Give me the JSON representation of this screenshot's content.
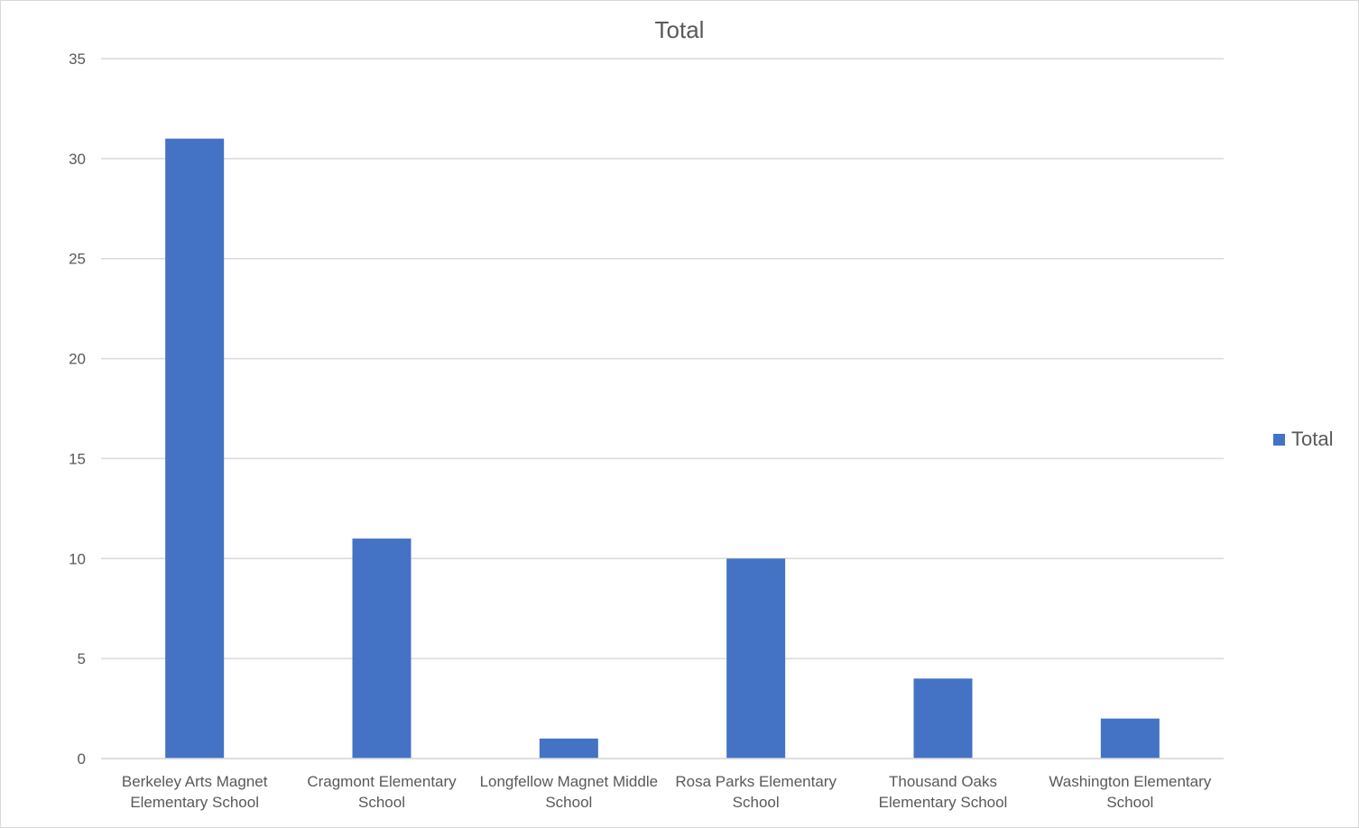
{
  "chart_data": {
    "type": "bar",
    "title": "Total",
    "categories": [
      [
        "Berkeley Arts Magnet",
        "Elementary School"
      ],
      [
        "Cragmont Elementary",
        "School"
      ],
      [
        "Longfellow Magnet Middle",
        "School"
      ],
      [
        "Rosa Parks Elementary",
        "School"
      ],
      [
        "Thousand Oaks",
        "Elementary School"
      ],
      [
        "Washington Elementary",
        "School"
      ]
    ],
    "series": [
      {
        "name": "Total",
        "values": [
          31,
          11,
          1,
          10,
          4,
          2
        ],
        "color": "#4472c4"
      }
    ],
    "ylim": [
      0,
      35
    ],
    "yticks": [
      0,
      5,
      10,
      15,
      20,
      25,
      30,
      35
    ],
    "grid": true,
    "legend_position": "right",
    "xlabel": "",
    "ylabel": ""
  }
}
